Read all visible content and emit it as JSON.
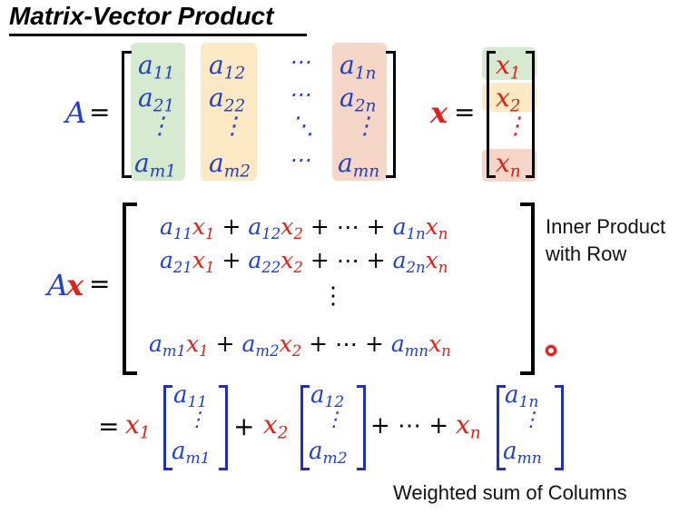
{
  "title": "Matrix-Vector Product",
  "matrix_def": {
    "lhs": "A",
    "equals": "=",
    "rows": [
      [
        "a11",
        "a12",
        "⋯",
        "a1n"
      ],
      [
        "a21",
        "a22",
        "⋯",
        "a2n"
      ],
      [
        "⋮",
        "⋮",
        "⋱",
        "⋮"
      ],
      [
        "am1",
        "am2",
        "⋯",
        "amn"
      ]
    ],
    "column_highlight_colors": [
      "#d6ead0",
      "#fde9c3",
      "#fde9c3",
      "#f6d6c6"
    ]
  },
  "vector_def": {
    "lhs": "x",
    "equals": "=",
    "entries": [
      "x1",
      "x2",
      "⋮",
      "xn"
    ],
    "highlight_colors": [
      "#d6ead0",
      "#fde9c3",
      "#ffffff",
      "#f6d6c6"
    ]
  },
  "product": {
    "lhs_A": "A",
    "lhs_x": "x",
    "equals": "=",
    "rows": [
      "row1",
      "row2",
      "vdots",
      "rowm"
    ],
    "annotation_line1": "Inner Product",
    "annotation_line2": "with Row"
  },
  "column_sum": {
    "equals": "=",
    "terms": [
      "x1",
      "x2",
      "xn"
    ],
    "columns": [
      [
        "a11",
        "⋮",
        "am1"
      ],
      [
        "a12",
        "⋮",
        "am2"
      ],
      [
        "a1n",
        "⋮",
        "amn"
      ]
    ],
    "ellipsis": "+ ⋯ +",
    "annotation": "Weighted sum of Columns"
  }
}
